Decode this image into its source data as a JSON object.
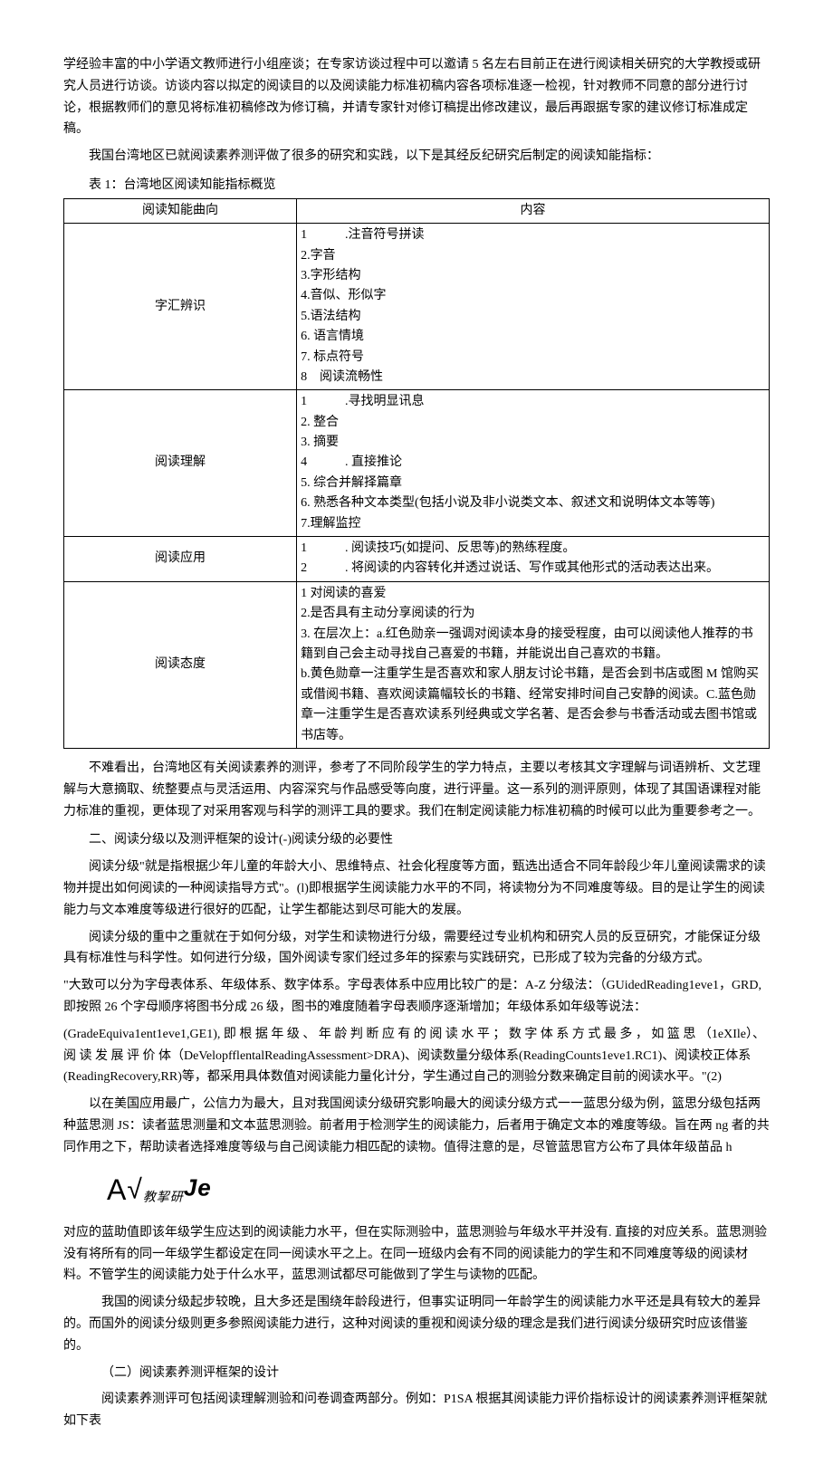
{
  "paragraphs": {
    "p1": "学经验丰富的中小学语文教师进行小组座谈；在专家访谈过程中可以邀请 5 名左右目前正在进行阅读相关研究的大学教授或研究人员进行访谈。访谈内容以拟定的阅读目的以及阅读能力标准初稿内容各项标准逐一检视，针对教师不同意的部分进行讨论，根据教师们的意见将标准初稿修改为修订稿，并请专家针对修订稿提出修改建议，最后再跟据专家的建议修订标准成定稿。",
    "p2": "我国台湾地区已就阅读素养测评做了很多的研究和实践，以下是其经反纪研究后制定的阅读知能指标：",
    "table_caption": "表 1：台湾地区阅读知能指标概览",
    "p3": "不难看出，台湾地区有关阅读素养的测评，参考了不同阶段学生的学力特点，主要以考核其文字理解与词语辨析、文艺理解与大意摘取、统整要点与灵活运用、内容深究与作品感受等向度，进行评量。这一系列的测评原则，体现了其国语课程对能力标准的重视，更体现了对采用客观与科学的测评工具的要求。我们在制定阅读能力标准初稿的时候可以此为重要参考之一。",
    "p4_title": "二、阅读分级以及测评框架的设计(-)阅读分级的必要性",
    "p5": "阅读分级\"就是指根据少年儿童的年龄大小、思维特点、社会化程度等方面，甄选出适合不同年龄段少年儿童阅读需求的读物并提出如何阅读的一种阅读指导方式\"。(l)即根据学生阅读能力水平的不同，将读物分为不同难度等级。目的是让学生的阅读能力与文本难度等级进行很好的匹配，让学生都能达到尽可能大的发展。",
    "p6": "阅读分级的重中之重就在于如何分级，对学生和读物进行分级，需要经过专业机构和研究人员的反豆研究，才能保证分级具有标准性与科学性。如何进行分级，国外阅读专家们经过多年的探索与实践研究，已形成了较为完备的分级方式。",
    "p7": "\"大致可以分为字母表体系、年级体系、数字体系。字母表体系中应用比较广的是：A-Z 分级法：（GUidedReading1eve1，GRD,即按照 26 个字母顺序将图书分成 26 级，图书的难度随着字母表顺序逐渐增加；年级体系如年级等说法：",
    "p8": "(GradeEquiva1ent1eve1,GE1), 即 根 据 年 级 、 年 龄 判 断 应 有 的 阅 读 水 平 ； 数 字 体 系 方 式 最 多 ， 如 篮 思 （1eXIle）、 阅 读 发 展 评 价 体（DeVelopfflentalReadingAssessment>DRA)、阅读数量分级体系(ReadingCounts1eve1.RC1)、阅读校正体系(ReadingRecovery,RR)等，都采用具体数值对阅读能力量化计分，学生通过自己的测验分数来确定目前的阅读水平。\"(2)",
    "p9": "以在美国应用最广，公信力为最大，且对我国阅读分级研究影响最大的阅读分级方式一一蓝思分级为例，篮思分级包括两种蓝思测 JS：读者蓝思测量和文本蓝思测验。前者用于检测学生的阅读能力，后者用于确定文本的难度等级。旨在两 ng 者的共同作用之下，帮助读者选择难度等级与自己阅读能力相匹配的读物。值得注意的是，尽管蓝思官方公布了具体年级苗品 h",
    "formula": "A√教挈研Je",
    "p10": "对应的蓝助值即该年级学生应达到的阅读能力水平，但在实际测验中，蓝思测验与年级水平并没有. 直接的对应关系。蓝思测验没有将所有的同一年级学生都设定在同一阅读水平之上。在同一班级内会有不同的阅读能力的学生和不同难度等级的阅读材料。不管学生的阅读能力处于什么水平，蓝思测试都尽可能做到了学生与读物的匹配。",
    "p11": "我国的阅读分级起步较晚，且大多还是围绕年龄段进行，但事实证明同一年龄学生的阅读能力水平还是具有较大的差异的。而国外的阅读分级则更多参照阅读能力进行，这种对阅读的重视和阅读分级的理念是我们进行阅读分级研究时应该借鉴的。",
    "p12_title": "（二）阅读素养测评框架的设计",
    "p13": "阅读素养测评可包括阅读理解测验和问卷调查两部分。例如：P1SA 根据其阅读能力评价指标设计的阅读素养测评框架就如下表"
  },
  "table": {
    "headers": [
      "阅读知能曲向",
      "内容"
    ],
    "rows": [
      {
        "left": "字汇辨识",
        "right": "1　　　.注音符号拼读\n2.字音\n3.字形结构\n4.音似、形似字\n5.语法结构\n6. 语言情境\n7. 标点符号\n8　阅读流畅性"
      },
      {
        "left": "阅读理解",
        "right": "1　　　.寻找明显讯息\n2. 整合\n3. 摘要\n4　　　. 直接推论\n5. 综合并解择篇章\n6. 熟悉各种文本类型(包括小说及非小说类文本、叙述文和说明体文本等等)\n7.理解监控"
      },
      {
        "left": "阅读应用",
        "right": "1　　　. 阅读技巧(如提问、反思等)的熟练程度。\n2　　　. 将阅读的内容转化并透过说话、写作或其他形式的活动表达出来。"
      },
      {
        "left": "阅读态度",
        "right": "1 对阅读的喜爱\n2.是否具有主动分享阅读的行为\n3. 在层次上：a.红色勋亲一强调对阅读本身的接受程度，由可以阅读他人推荐的书籍到自己会主动寻找自己喜爱的书籍，并能说出自己喜欢的书籍。\nb.黄色勋章一注重学生是否喜欢和家人朋友讨论书籍，是否会到书店或图 M 馆购买或借阅书籍、喜欢阅读篇幅较长的书籍、经常安排时间自己安静的阅读。C.蓝色勋章一注重学生是否喜欢读系列经典或文学名著、是否会参与书香活动或去图书馆或书店等。"
      }
    ]
  }
}
